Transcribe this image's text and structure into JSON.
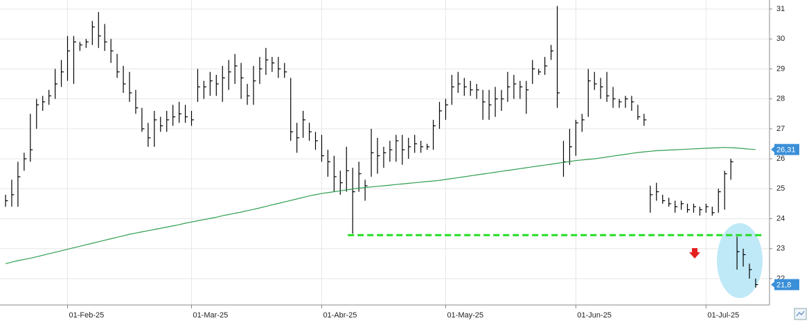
{
  "chart_data": {
    "type": "ohlc",
    "color": "#000000",
    "grid": true,
    "ylim": [
      21.12,
      31.3
    ],
    "yticks": [
      22,
      23,
      24,
      25,
      26,
      27,
      28,
      29,
      30,
      31
    ],
    "categories": [
      null,
      null,
      null,
      null,
      null,
      null,
      null,
      null,
      null,
      null,
      "01-Feb-25",
      null,
      null,
      null,
      null,
      null,
      null,
      null,
      null,
      null,
      null,
      null,
      null,
      null,
      null,
      null,
      null,
      null,
      null,
      null,
      "01-Mar-25",
      null,
      null,
      null,
      null,
      null,
      null,
      null,
      null,
      null,
      null,
      null,
      null,
      null,
      null,
      null,
      null,
      null,
      null,
      null,
      null,
      "01-Abr-25",
      null,
      null,
      null,
      null,
      null,
      null,
      null,
      null,
      null,
      null,
      null,
      null,
      null,
      null,
      null,
      null,
      null,
      null,
      null,
      "01-May-25",
      null,
      null,
      null,
      null,
      null,
      null,
      null,
      null,
      null,
      null,
      null,
      null,
      null,
      null,
      null,
      null,
      null,
      null,
      null,
      null,
      "01-Jun-25",
      null,
      null,
      null,
      null,
      null,
      null,
      null,
      null,
      null,
      null,
      null,
      null,
      null,
      null,
      null,
      null,
      null,
      null,
      null,
      null,
      "01-Jul-25",
      null,
      null,
      null,
      null,
      null,
      null,
      null,
      null
    ],
    "high": [
      24.8,
      25.3,
      25.9,
      26.2,
      27.5,
      28.0,
      28.1,
      28.3,
      29.0,
      29.3,
      30.1,
      30.1,
      29.9,
      30.0,
      30.6,
      30.9,
      30.5,
      30.0,
      29.5,
      29.1,
      28.9,
      28.3,
      27.7,
      27.2,
      27.6,
      27.4,
      27.6,
      27.8,
      27.9,
      27.8,
      27.6,
      29.0,
      28.6,
      28.9,
      28.8,
      29.1,
      29.3,
      29.5,
      29.2,
      28.5,
      29.1,
      29.4,
      29.7,
      29.4,
      29.4,
      29.2,
      28.7,
      27.2,
      27.6,
      27.2,
      26.9,
      26.8,
      26.3,
      26.1,
      25.6,
      26.4,
      25.7,
      25.9,
      25.3,
      27.0,
      26.7,
      26.4,
      26.6,
      26.8,
      26.8,
      26.7,
      26.8,
      26.6,
      26.5,
      27.3,
      27.9,
      28.0,
      28.8,
      28.9,
      28.7,
      28.6,
      28.5,
      28.3,
      28.3,
      28.4,
      28.3,
      28.9,
      28.8,
      28.6,
      28.6,
      29.3,
      29.0,
      29.4,
      29.8,
      31.1,
      26.6,
      27.0,
      27.3,
      27.5,
      29.0,
      28.9,
      28.7,
      28.9,
      28.4,
      28.0,
      28.1,
      28.1,
      27.8,
      27.5,
      25.1,
      25.2,
      24.8,
      24.7,
      24.6,
      24.6,
      24.5,
      24.5,
      24.4,
      24.5,
      24.4,
      25.0,
      25.6,
      26.0,
      23.4,
      23.0,
      22.5,
      22.0
    ],
    "low": [
      24.4,
      24.4,
      24.4,
      25.6,
      25.9,
      27.0,
      27.6,
      27.8,
      28.0,
      28.4,
      28.6,
      28.5,
      29.6,
      29.7,
      29.8,
      29.7,
      29.6,
      29.2,
      28.7,
      28.2,
      27.9,
      27.5,
      26.9,
      26.4,
      26.4,
      26.9,
      26.9,
      27.1,
      27.2,
      27.2,
      27.1,
      27.9,
      28.0,
      28.1,
      28.1,
      27.9,
      28.3,
      28.5,
      28.0,
      27.8,
      27.8,
      28.5,
      28.8,
      28.9,
      28.7,
      28.7,
      26.6,
      26.2,
      26.7,
      26.6,
      26.3,
      25.9,
      25.4,
      24.9,
      24.8,
      24.9,
      23.5,
      24.9,
      24.6,
      25.4,
      25.5,
      25.7,
      25.9,
      25.9,
      25.8,
      26.0,
      26.2,
      26.2,
      26.3,
      26.3,
      27.0,
      27.3,
      27.8,
      28.2,
      28.1,
      28.1,
      28.0,
      27.3,
      27.3,
      27.4,
      27.6,
      27.9,
      28.0,
      28.0,
      27.5,
      28.5,
      28.8,
      28.8,
      29.3,
      27.7,
      25.4,
      25.8,
      26.1,
      26.9,
      27.4,
      28.3,
      28.0,
      27.9,
      27.7,
      27.7,
      27.7,
      27.6,
      27.3,
      27.1,
      24.2,
      24.6,
      24.5,
      24.4,
      24.2,
      24.3,
      24.2,
      24.2,
      24.1,
      24.2,
      24.1,
      24.2,
      24.3,
      25.3,
      22.3,
      22.4,
      22.0,
      21.7
    ],
    "close": [
      24.6,
      24.8,
      25.4,
      26.0,
      26.3,
      27.8,
      27.9,
      28.1,
      28.5,
      28.9,
      29.6,
      29.9,
      29.8,
      29.9,
      30.4,
      30.1,
      29.9,
      29.6,
      28.9,
      28.5,
      28.2,
      27.7,
      27.0,
      26.7,
      27.3,
      27.1,
      27.3,
      27.4,
      27.5,
      27.4,
      27.3,
      28.4,
      28.4,
      28.6,
      28.5,
      28.7,
      28.9,
      29.1,
      28.7,
      28.1,
      28.6,
      29.0,
      29.3,
      29.2,
      29.0,
      28.9,
      26.9,
      26.7,
      27.3,
      26.9,
      26.6,
      26.1,
      25.9,
      25.4,
      25.2,
      25.6,
      24.9,
      25.5,
      25.1,
      26.2,
      26.1,
      26.2,
      26.3,
      26.6,
      26.3,
      26.4,
      26.5,
      26.4,
      26.4,
      27.1,
      27.6,
      27.8,
      28.4,
      28.5,
      28.4,
      28.3,
      28.3,
      27.9,
      27.8,
      28.0,
      28.0,
      28.4,
      28.5,
      28.4,
      28.3,
      29.0,
      28.9,
      29.1,
      29.6,
      28.2,
      25.9,
      26.4,
      27.2,
      27.3,
      28.6,
      28.5,
      28.4,
      28.1,
      28.0,
      27.9,
      28.0,
      27.9,
      27.4,
      27.3,
      24.8,
      24.9,
      24.6,
      24.5,
      24.4,
      24.5,
      24.3,
      24.4,
      24.3,
      24.4,
      24.2,
      24.9,
      25.5,
      25.9,
      22.9,
      22.8,
      22.3,
      21.8
    ],
    "ma": {
      "color": "#2e9e4f",
      "values": [
        22.5,
        22.55,
        22.6,
        22.64,
        22.68,
        22.73,
        22.78,
        22.83,
        22.88,
        22.93,
        22.98,
        23.03,
        23.08,
        23.13,
        23.18,
        23.23,
        23.28,
        23.33,
        23.38,
        23.43,
        23.48,
        23.52,
        23.56,
        23.6,
        23.64,
        23.68,
        23.72,
        23.76,
        23.8,
        23.85,
        23.89,
        23.93,
        23.97,
        24.01,
        24.05,
        24.1,
        24.14,
        24.18,
        24.22,
        24.27,
        24.31,
        24.36,
        24.41,
        24.46,
        24.51,
        24.56,
        24.61,
        24.66,
        24.71,
        24.76,
        24.8,
        24.84,
        24.87,
        24.9,
        24.93,
        24.96,
        24.99,
        25.02,
        25.04,
        25.06,
        25.08,
        25.1,
        25.12,
        25.14,
        25.16,
        25.18,
        25.2,
        25.22,
        25.24,
        25.26,
        25.28,
        25.31,
        25.34,
        25.37,
        25.4,
        25.43,
        25.46,
        25.49,
        25.52,
        25.55,
        25.58,
        25.61,
        25.64,
        25.67,
        25.7,
        25.73,
        25.76,
        25.79,
        25.82,
        25.85,
        25.88,
        25.91,
        25.94,
        25.96,
        25.98,
        26.0,
        26.03,
        26.06,
        26.09,
        26.12,
        26.15,
        26.18,
        26.21,
        26.23,
        26.25,
        26.27,
        26.28,
        26.29,
        26.3,
        26.31,
        26.32,
        26.33,
        26.34,
        26.35,
        26.36,
        26.37,
        26.38,
        26.37,
        26.36,
        26.34,
        26.32,
        26.31
      ]
    },
    "support": {
      "value": 23.45,
      "color": "#22dd22"
    },
    "price_labels": [
      {
        "value": 26.31,
        "label": "26,31",
        "color": "#3a8fd9"
      },
      {
        "value": 21.8,
        "label": "21,8",
        "color": "#3a8fd9"
      }
    ]
  }
}
